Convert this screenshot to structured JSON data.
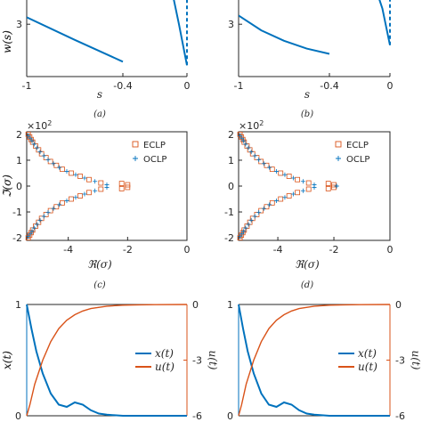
{
  "colors": {
    "blue": "#0072BD",
    "orange": "#D95319",
    "axis": "#262626"
  },
  "chart_data": [
    {
      "type": "line",
      "panel": "a",
      "caption": "(a)",
      "xlabel": "s",
      "ylabel": "w(s)",
      "xlim": [
        -1,
        0
      ],
      "ylim": [
        0,
        5
      ],
      "xticks": [
        -1,
        -0.4,
        0
      ],
      "xtick_labels": [
        "-1",
        "-0.4",
        "0"
      ],
      "yticks": [
        3
      ],
      "ytick_labels": [
        "3"
      ],
      "series": [
        {
          "style": "solid",
          "x": [
            -1,
            -0.7,
            -0.4
          ],
          "y": [
            3.4,
            2.1,
            0.85
          ]
        },
        {
          "style": "solid",
          "x": [
            -0.1,
            -0.05,
            0
          ],
          "y": [
            5.2,
            3.0,
            0.65
          ]
        },
        {
          "style": "dashed",
          "x": [
            0,
            0
          ],
          "y": [
            0.65,
            5.2
          ]
        }
      ]
    },
    {
      "type": "line",
      "panel": "b",
      "caption": "(b)",
      "xlabel": "s",
      "ylabel": "w(s)",
      "xlim": [
        -1,
        0
      ],
      "ylim": [
        0,
        5
      ],
      "xticks": [
        -1,
        -0.4,
        0
      ],
      "xtick_labels": [
        "-1",
        "-0.4",
        "0"
      ],
      "yticks": [
        3
      ],
      "ytick_labels": [
        "3"
      ],
      "series": [
        {
          "style": "solid",
          "x": [
            -1,
            -0.85,
            -0.7,
            -0.55,
            -0.4
          ],
          "y": [
            3.5,
            2.65,
            2.05,
            1.6,
            1.3
          ]
        },
        {
          "style": "solid",
          "x": [
            -0.1,
            -0.05,
            0
          ],
          "y": [
            5.2,
            3.9,
            1.8
          ]
        },
        {
          "style": "dashed",
          "x": [
            0,
            0
          ],
          "y": [
            1.8,
            5.2
          ]
        }
      ]
    },
    {
      "type": "scatter",
      "panel": "c",
      "caption": "(c)",
      "xlabel": "ℜ(σ)",
      "ylabel": "ℑ(σ)",
      "y_multiplier": "×10",
      "y_multiplier_exp": "2",
      "xlim": [
        -5.4,
        0
      ],
      "ylim": [
        -2.1,
        2.1
      ],
      "xticks": [
        -4,
        -2,
        0
      ],
      "xtick_labels": [
        "-4",
        "-2",
        "0"
      ],
      "yticks": [
        2,
        1,
        0,
        -1,
        -2
      ],
      "ytick_labels": [
        "2",
        "1",
        "0",
        "-1",
        "-2"
      ],
      "legend_position": "top-right",
      "series": [
        {
          "name": "ECLP",
          "marker": "square",
          "x": [
            -5.35,
            -5.3,
            -5.25,
            -5.2,
            -5.1,
            -5.0,
            -4.9,
            -4.75,
            -4.6,
            -4.4,
            -4.2,
            -3.9,
            -3.6,
            -3.3,
            -2.9,
            -2.2,
            -2.0,
            -5.35,
            -5.3,
            -5.25,
            -5.2,
            -5.1,
            -5.0,
            -4.9,
            -4.75,
            -4.6,
            -4.4,
            -4.2,
            -3.9,
            -3.6,
            -3.3,
            -2.9,
            -2.2,
            -2.0
          ],
          "y": [
            2.0,
            1.9,
            1.8,
            1.7,
            1.55,
            1.4,
            1.25,
            1.1,
            0.95,
            0.8,
            0.65,
            0.5,
            0.38,
            0.25,
            0.12,
            0.1,
            0.05,
            -2.0,
            -1.9,
            -1.8,
            -1.7,
            -1.55,
            -1.4,
            -1.25,
            -1.1,
            -0.95,
            -0.8,
            -0.65,
            -0.5,
            -0.38,
            -0.25,
            -0.12,
            -0.1,
            -0.05
          ]
        },
        {
          "name": "OCLP",
          "marker": "plus",
          "x": [
            -5.35,
            -5.28,
            -5.22,
            -5.15,
            -5.05,
            -4.95,
            -4.82,
            -4.68,
            -4.5,
            -4.3,
            -4.05,
            -3.75,
            -3.45,
            -3.1,
            -2.7,
            -5.35,
            -5.28,
            -5.22,
            -5.15,
            -5.05,
            -4.95,
            -4.82,
            -4.68,
            -4.5,
            -4.3,
            -4.05,
            -3.75,
            -3.45,
            -3.1,
            -2.7
          ],
          "y": [
            1.95,
            1.85,
            1.75,
            1.62,
            1.48,
            1.32,
            1.17,
            1.02,
            0.87,
            0.72,
            0.57,
            0.44,
            0.31,
            0.18,
            0.05,
            -1.95,
            -1.85,
            -1.75,
            -1.62,
            -1.48,
            -1.32,
            -1.17,
            -1.02,
            -0.87,
            -0.72,
            -0.57,
            -0.44,
            -0.31,
            -0.18,
            -0.05
          ]
        }
      ]
    },
    {
      "type": "scatter",
      "panel": "d",
      "caption": "(d)",
      "xlabel": "ℜ(σ)",
      "ylabel": "ℑ(σ)",
      "y_multiplier": "×10",
      "y_multiplier_exp": "2",
      "xlim": [
        -5.4,
        0
      ],
      "ylim": [
        -2.1,
        2.1
      ],
      "xticks": [
        -4,
        -2,
        0
      ],
      "xtick_labels": [
        "-4",
        "-2",
        "0"
      ],
      "yticks": [
        2,
        1,
        0,
        -1,
        -2
      ],
      "ytick_labels": [
        "2",
        "1",
        "0",
        "-1",
        "-2"
      ],
      "legend_position": "top-right",
      "series": [
        {
          "name": "ECLP",
          "marker": "square",
          "x": [
            -5.35,
            -5.3,
            -5.25,
            -5.2,
            -5.1,
            -5.0,
            -4.9,
            -4.75,
            -4.6,
            -4.4,
            -4.2,
            -3.9,
            -3.6,
            -3.3,
            -2.9,
            -2.2,
            -2.0,
            -5.35,
            -5.3,
            -5.25,
            -5.2,
            -5.1,
            -5.0,
            -4.9,
            -4.75,
            -4.6,
            -4.4,
            -4.2,
            -3.9,
            -3.6,
            -3.3,
            -2.9,
            -2.2,
            -2.0
          ],
          "y": [
            2.0,
            1.9,
            1.8,
            1.7,
            1.55,
            1.4,
            1.25,
            1.1,
            0.95,
            0.8,
            0.65,
            0.5,
            0.38,
            0.25,
            0.12,
            0.1,
            0.05,
            -2.0,
            -1.9,
            -1.8,
            -1.7,
            -1.55,
            -1.4,
            -1.25,
            -1.1,
            -0.95,
            -0.8,
            -0.65,
            -0.5,
            -0.38,
            -0.25,
            -0.12,
            -0.1,
            -0.05
          ]
        },
        {
          "name": "OCLP",
          "marker": "plus",
          "x": [
            -5.35,
            -5.28,
            -5.22,
            -5.15,
            -5.05,
            -4.95,
            -4.82,
            -4.68,
            -4.5,
            -4.3,
            -4.05,
            -3.75,
            -3.45,
            -3.1,
            -2.7,
            -1.9,
            -5.35,
            -5.28,
            -5.22,
            -5.15,
            -5.05,
            -4.95,
            -4.82,
            -4.68,
            -4.5,
            -4.3,
            -4.05,
            -3.75,
            -3.45,
            -3.1,
            -2.7,
            -1.9
          ],
          "y": [
            1.95,
            1.85,
            1.75,
            1.62,
            1.48,
            1.32,
            1.17,
            1.02,
            0.87,
            0.72,
            0.57,
            0.44,
            0.31,
            0.18,
            0.05,
            0.0,
            -1.95,
            -1.85,
            -1.75,
            -1.62,
            -1.48,
            -1.32,
            -1.17,
            -1.02,
            -0.87,
            -0.72,
            -0.57,
            -0.44,
            -0.31,
            -0.18,
            -0.05,
            0.0
          ]
        }
      ]
    },
    {
      "type": "line",
      "panel": "e",
      "ylabel_left": "x(t)",
      "ylabel_right": "u(t)",
      "ylim_left": [
        0,
        1
      ],
      "ylim_right": [
        -6,
        0
      ],
      "yticks_left": [
        1,
        0
      ],
      "ytick_labels_left": [
        "1",
        "0"
      ],
      "yticks_right": [
        0,
        -3,
        -6
      ],
      "ytick_labels_right": [
        "0",
        "-3",
        "-6"
      ],
      "xlim": [
        0,
        1
      ],
      "legend_position": "center-right",
      "series": [
        {
          "name": "x(t)",
          "axis": "left",
          "color": "blue",
          "x": [
            0,
            0.03,
            0.06,
            0.1,
            0.15,
            0.2,
            0.25,
            0.3,
            0.35,
            0.4,
            0.45,
            0.5,
            0.6,
            0.7,
            0.8,
            1.0
          ],
          "y": [
            1.0,
            0.78,
            0.58,
            0.38,
            0.2,
            0.1,
            0.08,
            0.12,
            0.1,
            0.05,
            0.02,
            0.01,
            0.0,
            0.0,
            0.0,
            0.0
          ]
        },
        {
          "name": "u(t)",
          "axis": "right",
          "color": "orange",
          "x": [
            0,
            0.02,
            0.05,
            0.1,
            0.15,
            0.2,
            0.25,
            0.3,
            0.35,
            0.4,
            0.5,
            0.6,
            0.7,
            0.8,
            1.0
          ],
          "y": [
            -6.0,
            -5.4,
            -4.3,
            -3.0,
            -2.0,
            -1.3,
            -0.85,
            -0.55,
            -0.35,
            -0.22,
            -0.09,
            -0.04,
            -0.02,
            -0.01,
            0.0
          ]
        }
      ]
    },
    {
      "type": "line",
      "panel": "f",
      "ylabel_left": "x(t)",
      "ylabel_right": "u(t)",
      "ylim_left": [
        0,
        1
      ],
      "ylim_right": [
        -6,
        0
      ],
      "yticks_left": [
        1,
        0
      ],
      "ytick_labels_left": [
        "1",
        "0"
      ],
      "yticks_right": [
        0,
        -3,
        -6
      ],
      "ytick_labels_right": [
        "0",
        "-3",
        "-6"
      ],
      "xlim": [
        0,
        1
      ],
      "legend_position": "center-right",
      "series": [
        {
          "name": "x(t)",
          "axis": "left",
          "color": "blue",
          "x": [
            0,
            0.03,
            0.06,
            0.1,
            0.15,
            0.2,
            0.25,
            0.3,
            0.35,
            0.4,
            0.45,
            0.5,
            0.6,
            0.7,
            0.8,
            1.0
          ],
          "y": [
            1.0,
            0.78,
            0.58,
            0.38,
            0.2,
            0.1,
            0.08,
            0.12,
            0.1,
            0.05,
            0.02,
            0.01,
            0.0,
            0.0,
            0.0,
            0.0
          ]
        },
        {
          "name": "u(t)",
          "axis": "right",
          "color": "orange",
          "x": [
            0,
            0.02,
            0.05,
            0.1,
            0.15,
            0.2,
            0.25,
            0.3,
            0.35,
            0.4,
            0.5,
            0.6,
            0.7,
            0.8,
            1.0
          ],
          "y": [
            -6.0,
            -5.4,
            -4.3,
            -3.0,
            -2.0,
            -1.3,
            -0.85,
            -0.55,
            -0.35,
            -0.22,
            -0.09,
            -0.04,
            -0.02,
            -0.01,
            0.0
          ]
        }
      ]
    }
  ]
}
